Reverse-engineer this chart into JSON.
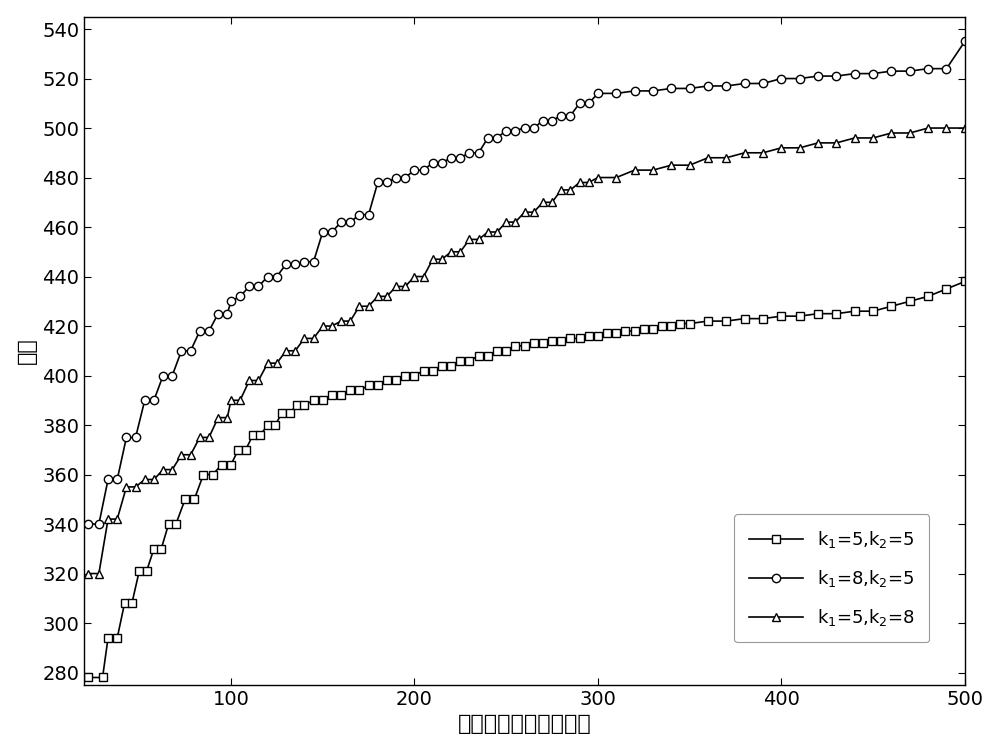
{
  "title": "",
  "xlabel": "距离基站的距离（米）",
  "ylabel": "跳数",
  "xlim": [
    20,
    500
  ],
  "ylim": [
    275,
    545
  ],
  "xticks": [
    100,
    200,
    300,
    400,
    500
  ],
  "yticks": [
    280,
    300,
    320,
    340,
    360,
    380,
    400,
    420,
    440,
    460,
    480,
    500,
    520,
    540
  ],
  "legend_labels": [
    "k$_1$=5,k$_2$=5",
    "k$_1$=8,k$_2$=5",
    "k$_1$=5,k$_2$=8"
  ],
  "line_color": "#000000",
  "background_color": "#ffffff",
  "series1_x": [
    22,
    30,
    33,
    38,
    42,
    46,
    50,
    54,
    58,
    62,
    66,
    70,
    75,
    80,
    85,
    90,
    95,
    100,
    104,
    108,
    112,
    116,
    120,
    124,
    128,
    132,
    136,
    140,
    145,
    150,
    155,
    160,
    165,
    170,
    175,
    180,
    185,
    190,
    195,
    200,
    205,
    210,
    215,
    220,
    225,
    230,
    235,
    240,
    245,
    250,
    255,
    260,
    265,
    270,
    275,
    280,
    285,
    290,
    295,
    300,
    305,
    310,
    315,
    320,
    325,
    330,
    335,
    340,
    345,
    350,
    360,
    370,
    380,
    390,
    400,
    410,
    420,
    430,
    440,
    450,
    460,
    470,
    480,
    490,
    500
  ],
  "series1_y": [
    278,
    278,
    294,
    294,
    308,
    308,
    321,
    321,
    330,
    330,
    340,
    340,
    350,
    350,
    360,
    360,
    364,
    364,
    370,
    370,
    376,
    376,
    380,
    380,
    385,
    385,
    388,
    388,
    390,
    390,
    392,
    392,
    394,
    394,
    396,
    396,
    398,
    398,
    400,
    400,
    402,
    402,
    404,
    404,
    406,
    406,
    408,
    408,
    410,
    410,
    412,
    412,
    413,
    413,
    414,
    414,
    415,
    415,
    416,
    416,
    417,
    417,
    418,
    418,
    419,
    419,
    420,
    420,
    421,
    421,
    422,
    422,
    423,
    423,
    424,
    424,
    425,
    425,
    426,
    426,
    428,
    430,
    432,
    435,
    438
  ],
  "series2_x": [
    22,
    28,
    33,
    38,
    43,
    48,
    53,
    58,
    63,
    68,
    73,
    78,
    83,
    88,
    93,
    98,
    100,
    105,
    110,
    115,
    120,
    125,
    130,
    135,
    140,
    145,
    150,
    155,
    160,
    165,
    170,
    175,
    180,
    185,
    190,
    195,
    200,
    205,
    210,
    215,
    220,
    225,
    230,
    235,
    240,
    245,
    250,
    255,
    260,
    265,
    270,
    275,
    280,
    285,
    290,
    295,
    300,
    310,
    320,
    330,
    340,
    350,
    360,
    370,
    380,
    390,
    400,
    410,
    420,
    430,
    440,
    450,
    460,
    470,
    480,
    490,
    500
  ],
  "series2_y": [
    340,
    340,
    358,
    358,
    375,
    375,
    390,
    390,
    400,
    400,
    410,
    410,
    418,
    418,
    425,
    425,
    430,
    432,
    436,
    436,
    440,
    440,
    445,
    445,
    446,
    446,
    458,
    458,
    462,
    462,
    465,
    465,
    478,
    478,
    480,
    480,
    483,
    483,
    486,
    486,
    488,
    488,
    490,
    490,
    496,
    496,
    499,
    499,
    500,
    500,
    503,
    503,
    505,
    505,
    510,
    510,
    514,
    514,
    515,
    515,
    516,
    516,
    517,
    517,
    518,
    518,
    520,
    520,
    521,
    521,
    522,
    522,
    523,
    523,
    524,
    524,
    535
  ],
  "series3_x": [
    22,
    28,
    33,
    38,
    43,
    48,
    53,
    58,
    63,
    68,
    73,
    78,
    83,
    88,
    93,
    98,
    100,
    105,
    110,
    115,
    120,
    125,
    130,
    135,
    140,
    145,
    150,
    155,
    160,
    165,
    170,
    175,
    180,
    185,
    190,
    195,
    200,
    205,
    210,
    215,
    220,
    225,
    230,
    235,
    240,
    245,
    250,
    255,
    260,
    265,
    270,
    275,
    280,
    285,
    290,
    295,
    300,
    310,
    320,
    330,
    340,
    350,
    360,
    370,
    380,
    390,
    400,
    410,
    420,
    430,
    440,
    450,
    460,
    470,
    480,
    490,
    500
  ],
  "series3_y": [
    320,
    320,
    342,
    342,
    355,
    355,
    358,
    358,
    362,
    362,
    368,
    368,
    375,
    375,
    383,
    383,
    390,
    390,
    398,
    398,
    405,
    405,
    410,
    410,
    415,
    415,
    420,
    420,
    422,
    422,
    428,
    428,
    432,
    432,
    436,
    436,
    440,
    440,
    447,
    447,
    450,
    450,
    455,
    455,
    458,
    458,
    462,
    462,
    466,
    466,
    470,
    470,
    475,
    475,
    478,
    478,
    480,
    480,
    483,
    483,
    485,
    485,
    488,
    488,
    490,
    490,
    492,
    492,
    494,
    494,
    496,
    496,
    498,
    498,
    500,
    500,
    500
  ]
}
